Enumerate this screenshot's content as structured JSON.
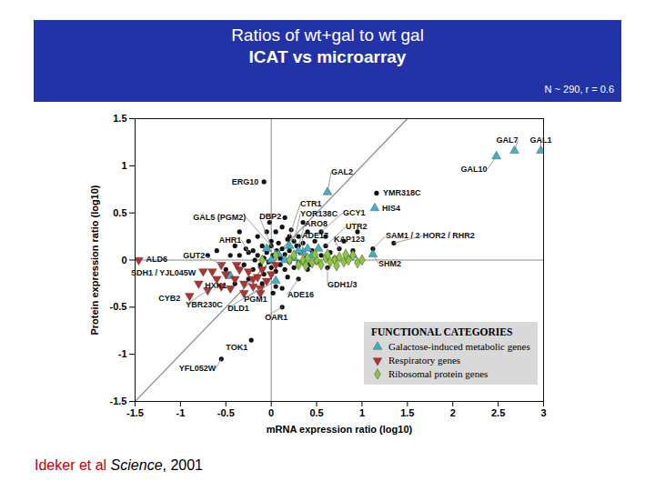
{
  "chart_data": {
    "type": "scatter",
    "title": "Ratios of wt+gal to wt gal",
    "subtitle": "ICAT vs microarray",
    "annotation": "N ~ 290, r = 0.6",
    "citation": [
      "Ideker et al",
      "Science",
      ", 2001"
    ],
    "x_label": "mRNA expression ratio (log10)",
    "y_label": "Protein expression ratio (log10)",
    "xlim": [
      -1.5,
      3
    ],
    "ylim": [
      -1.5,
      1.5
    ],
    "xticks": [
      -1.5,
      -1,
      -0.5,
      0,
      0.5,
      1,
      1.5,
      2,
      2.5,
      3
    ],
    "yticks": [
      -1.5,
      -1,
      -0.5,
      0,
      0.5,
      1,
      1.5
    ],
    "grid": false,
    "legend": "bottom right",
    "legend_title": "FUNCTIONAL CATEGORIES",
    "reference_lines": {
      "x": [
        0
      ],
      "y": [
        0
      ],
      "diagonal": [
        [
          -1.5,
          -1.5
        ],
        [
          1.5,
          1.5
        ]
      ]
    },
    "series": [
      {
        "color": "#111111",
        "marker": "circle",
        "values": [
          [
            -0.08,
            0.83,
            "ERG10"
          ],
          [
            1.16,
            0.71,
            "YMR318C"
          ],
          [
            0.2,
            0.25,
            "CTR1"
          ],
          [
            0.25,
            0.2,
            "YOR138C"
          ],
          [
            0.3,
            0.15,
            "ARO8"
          ],
          [
            0.55,
            0.3,
            "GCY1"
          ],
          [
            0.6,
            0.15,
            "UTR2"
          ],
          [
            0.75,
            0.12,
            "KAP123"
          ],
          [
            1.12,
            0.12,
            "SAM1 / 2"
          ],
          [
            1.35,
            0.18,
            "HOR2 / RHR2"
          ],
          [
            0.0,
            0.15,
            "DBP2"
          ],
          [
            -0.25,
            0.08,
            "AHR1"
          ],
          [
            0.12,
            -0.5,
            "OAR1"
          ],
          [
            0.3,
            -0.2,
            "ADE16"
          ],
          [
            0.62,
            -0.08,
            "GDH1/3"
          ],
          [
            -0.22,
            -0.85,
            "TOK1"
          ],
          [
            -0.55,
            -1.05,
            "YFL052W"
          ],
          [
            -0.4,
            0.15
          ],
          [
            -0.35,
            0.05
          ],
          [
            -0.3,
            -0.05
          ],
          [
            -0.25,
            0.2
          ],
          [
            -0.2,
            0.1
          ],
          [
            -0.2,
            -0.1
          ],
          [
            -0.15,
            0.25
          ],
          [
            -0.15,
            0.05
          ],
          [
            -0.12,
            -0.05
          ],
          [
            -0.1,
            0.15
          ],
          [
            -0.08,
            -0.15
          ],
          [
            -0.05,
            0.3
          ],
          [
            -0.05,
            0.08
          ],
          [
            -0.03,
            -0.02
          ],
          [
            0.0,
            0.2
          ],
          [
            0.0,
            -0.08
          ],
          [
            0.02,
            0.05
          ],
          [
            0.05,
            0.3
          ],
          [
            0.05,
            -0.12
          ],
          [
            0.08,
            0.18
          ],
          [
            0.1,
            0.02
          ],
          [
            0.1,
            -0.05
          ],
          [
            0.12,
            0.12
          ],
          [
            0.12,
            0.35
          ],
          [
            0.15,
            -0.1
          ],
          [
            0.15,
            0.06
          ],
          [
            0.18,
            0.22
          ],
          [
            0.2,
            -0.02
          ],
          [
            0.2,
            0.1
          ],
          [
            0.22,
            0.32
          ],
          [
            0.25,
            -0.08
          ],
          [
            0.25,
            0.05
          ],
          [
            0.28,
            0.15
          ],
          [
            0.3,
            0.25
          ],
          [
            0.3,
            -0.03
          ],
          [
            0.35,
            0.18
          ],
          [
            0.38,
            0.02
          ],
          [
            0.4,
            0.3
          ],
          [
            0.4,
            -0.1
          ],
          [
            0.45,
            0.1
          ],
          [
            0.48,
            0.2
          ],
          [
            0.5,
            -0.02
          ],
          [
            0.55,
            0.05
          ],
          [
            0.6,
            0.25
          ],
          [
            0.65,
            0.08
          ],
          [
            0.7,
            0.02
          ],
          [
            0.8,
            0.2
          ],
          [
            0.9,
            0.1
          ],
          [
            -0.5,
            -0.1
          ],
          [
            -0.45,
            0.05
          ],
          [
            -0.6,
            0.1
          ],
          [
            -0.1,
            -0.25
          ],
          [
            0.05,
            -0.28
          ],
          [
            -0.25,
            -0.2
          ],
          [
            0.18,
            -0.18
          ],
          [
            -0.35,
            0.3
          ],
          [
            -0.02,
            0.4
          ],
          [
            0.15,
            0.45
          ],
          [
            0.35,
            0.4
          ],
          [
            -0.08,
            0.02
          ],
          [
            0.06,
            0.1
          ],
          [
            -0.18,
            0.0
          ],
          [
            0.32,
            0.08
          ],
          [
            0.42,
            -0.05
          ],
          [
            0.02,
            -0.35
          ],
          [
            -0.4,
            -0.25
          ],
          [
            0.95,
            0.3
          ],
          [
            -0.7,
            0.05
          ],
          [
            0.12,
            -0.3
          ],
          [
            -0.28,
            0.12
          ]
        ]
      },
      {
        "name": "Galactose-induced metabolic genes",
        "color": "#3ab4cc",
        "marker": "triangle-up",
        "values": [
          [
            2.48,
            1.1,
            "GAL10"
          ],
          [
            2.68,
            1.16,
            "GAL7"
          ],
          [
            2.97,
            1.16,
            "GAL1"
          ],
          [
            0.62,
            0.72,
            "GAL2"
          ],
          [
            1.14,
            0.55,
            "HIS4"
          ],
          [
            0.35,
            0.08,
            "ADE17"
          ],
          [
            1.12,
            0.06,
            "SHM2"
          ],
          [
            0.08,
            0.06,
            "GAL5 (PGM2)"
          ],
          [
            -0.45,
            -0.17,
            "HXK1"
          ],
          [
            0.05,
            -0.22,
            "PGM1"
          ],
          [
            0.3,
            0.1
          ],
          [
            0.4,
            0.12
          ],
          [
            0.25,
            0.02
          ],
          [
            0.45,
            0.05
          ],
          [
            0.2,
            0.15
          ],
          [
            0.52,
            0.12
          ],
          [
            0.15,
            0.0
          ],
          [
            -0.05,
            0.12
          ],
          [
            0.0,
            0.0
          ],
          [
            0.35,
            -0.02
          ],
          [
            0.9,
            0.05
          ]
        ]
      },
      {
        "name": "Respiratory genes",
        "color": "#b3322e",
        "marker": "triangle-down",
        "values": [
          [
            -1.46,
            0.0,
            "ALD6"
          ],
          [
            -0.55,
            -0.05,
            "GUT2"
          ],
          [
            -0.75,
            -0.12,
            "SDH1 / YJL045W"
          ],
          [
            -0.9,
            -0.38,
            "CYB2"
          ],
          [
            -0.7,
            -0.32,
            "YBR230C"
          ],
          [
            -0.12,
            -0.3,
            "DLD1"
          ],
          [
            -0.5,
            -0.15
          ],
          [
            -0.4,
            -0.2
          ],
          [
            -0.35,
            -0.1
          ],
          [
            -0.3,
            -0.25
          ],
          [
            -0.25,
            -0.12
          ],
          [
            -0.2,
            -0.2
          ],
          [
            -0.15,
            -0.18
          ],
          [
            -0.1,
            -0.1
          ],
          [
            -0.05,
            -0.22
          ],
          [
            0.0,
            -0.15
          ],
          [
            -0.6,
            -0.2
          ],
          [
            -0.55,
            -0.28
          ],
          [
            -0.45,
            -0.3
          ],
          [
            -0.3,
            -0.35
          ],
          [
            -0.2,
            -0.28
          ],
          [
            -0.65,
            -0.12
          ],
          [
            -0.38,
            -0.05
          ],
          [
            0.05,
            -0.05
          ],
          [
            -0.12,
            -0.35
          ],
          [
            -0.8,
            -0.25
          ]
        ]
      },
      {
        "name": "Ribosomal protein genes",
        "color": "#8cc63f",
        "marker": "diamond",
        "values": [
          [
            0.2,
            0.0
          ],
          [
            0.3,
            -0.05
          ],
          [
            0.35,
            0.0
          ],
          [
            0.4,
            0.02
          ],
          [
            0.45,
            -0.03
          ],
          [
            0.5,
            0.0
          ],
          [
            0.55,
            -0.05
          ],
          [
            0.6,
            0.02
          ],
          [
            0.65,
            -0.02
          ],
          [
            0.7,
            0.0
          ],
          [
            0.75,
            0.03
          ],
          [
            0.8,
            -0.02
          ],
          [
            0.85,
            0.0
          ],
          [
            0.9,
            0.05
          ],
          [
            0.95,
            -0.03
          ],
          [
            1.0,
            0.0
          ],
          [
            0.62,
            0.06
          ],
          [
            0.48,
            0.06
          ],
          [
            0.25,
            0.05
          ],
          [
            0.72,
            -0.06
          ],
          [
            0.82,
            0.06
          ],
          [
            0.38,
            -0.06
          ],
          [
            -0.1,
            0.0
          ],
          [
            0.05,
            0.05
          ]
        ]
      }
    ]
  }
}
